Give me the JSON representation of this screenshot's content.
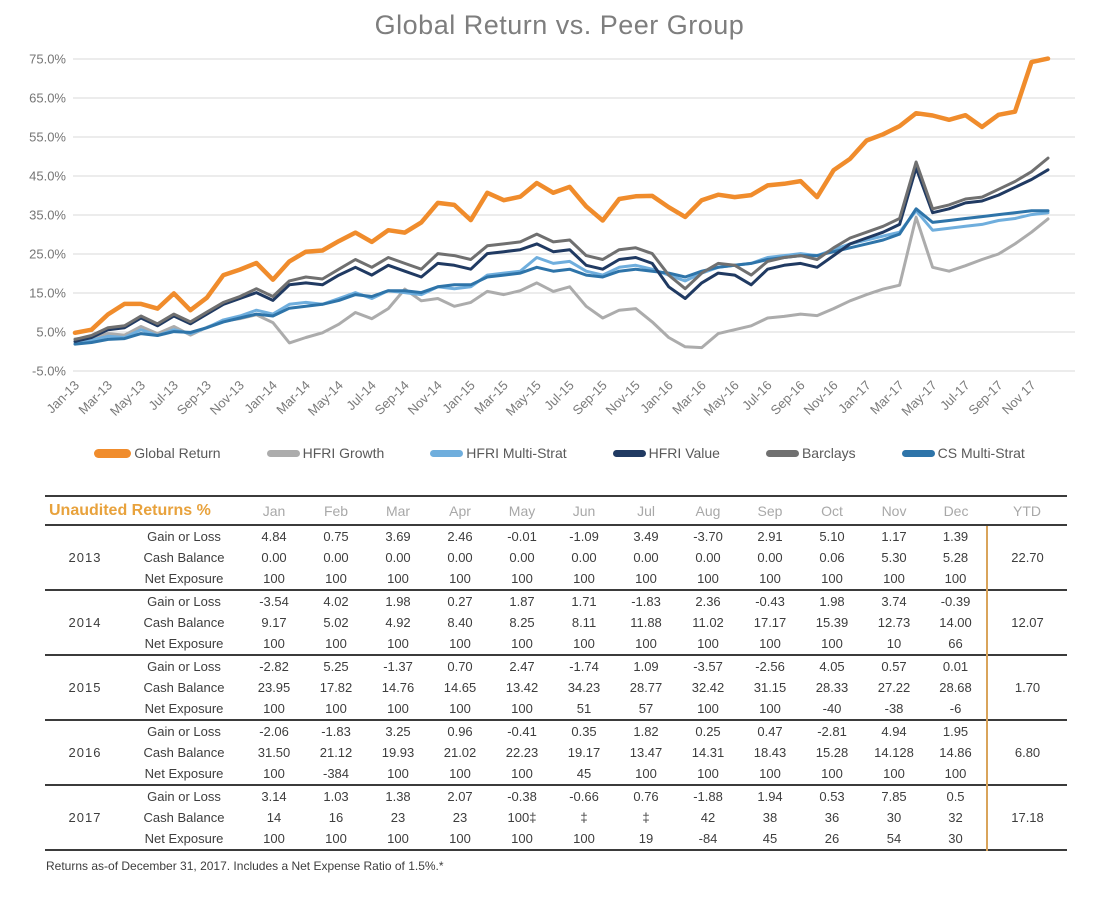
{
  "title": "Global Return vs. Peer Group",
  "footnote": "Returns as-of December 31, 2017. Includes a Net Expense Ratio of 1.5%.*",
  "colors": {
    "accent_orange": "#E8A23C",
    "navy": "#33506E",
    "grid_line": "#D9D9D9",
    "axis_text": "#757575",
    "table_rule": "#3B3B3B",
    "ytd_divider": "#D9A45B"
  },
  "chart_data": {
    "type": "line",
    "title": "Global Return vs. Peer Group",
    "xlabel": "",
    "ylabel": "",
    "ylim": [
      -5,
      75
    ],
    "y_ticks": [
      75,
      65,
      55,
      45,
      35,
      25,
      15,
      5,
      -5
    ],
    "y_tick_labels": [
      "75.0%",
      "65.0%",
      "55.0%",
      "45.0%",
      "35.0%",
      "25.0%",
      "15.0%",
      "5.0%",
      "-5.0%"
    ],
    "x_tick_labels": [
      "Jan-13",
      "Mar-13",
      "May-13",
      "Jul-13",
      "Sep-13",
      "Nov-13",
      "Jan-14",
      "Mar-14",
      "May-14",
      "Jul-14",
      "Sep-14",
      "Nov-14",
      "Jan-15",
      "Mar-15",
      "May-15",
      "Jul-15",
      "Sep-15",
      "Nov-15",
      "Jan-16",
      "Mar-16",
      "May-16",
      "Jul-16",
      "Sep-16",
      "Nov-16",
      "Jan-17",
      "Mar-17",
      "May-17",
      "Jul-17",
      "Sep-17",
      "Nov 17"
    ],
    "x_count": 60,
    "grid": true,
    "legend_position": "bottom",
    "draw_order": [
      1,
      2,
      5,
      3,
      4,
      0
    ],
    "series": [
      {
        "name": "Global Return",
        "color": "#F08C2C",
        "width": 4.5,
        "values": [
          4.8,
          5.6,
          9.5,
          12.2,
          12.2,
          11.0,
          14.9,
          10.6,
          13.8,
          19.6,
          21.0,
          22.7,
          18.4,
          23.1,
          25.6,
          25.9,
          28.3,
          30.5,
          28.1,
          31.1,
          30.5,
          33.1,
          38.1,
          37.6,
          33.7,
          40.7,
          38.8,
          39.7,
          43.2,
          40.7,
          42.2,
          37.2,
          33.6,
          39.1,
          39.8,
          39.9,
          37.0,
          34.5,
          38.8,
          40.2,
          39.6,
          40.1,
          42.6,
          43.0,
          43.7,
          39.6,
          46.5,
          49.4,
          54.1,
          55.7,
          57.8,
          61.1,
          60.5,
          59.4,
          60.6,
          57.6,
          60.7,
          61.5,
          74.2,
          75.1
        ]
      },
      {
        "name": "HFRI Growth",
        "color": "#ACACAC",
        "width": 3,
        "values": [
          3.2,
          3.6,
          4.6,
          4.2,
          6.4,
          4.6,
          6.4,
          4.2,
          6.2,
          7.8,
          8.4,
          9.4,
          7.4,
          2.2,
          3.6,
          4.8,
          7.0,
          10.0,
          8.4,
          11.0,
          16.0,
          13.0,
          13.6,
          11.6,
          12.6,
          15.4,
          14.6,
          15.6,
          17.6,
          15.4,
          16.6,
          11.6,
          8.6,
          10.6,
          11.0,
          7.6,
          3.6,
          1.2,
          1.0,
          4.6,
          5.6,
          6.6,
          8.6,
          9.0,
          9.6,
          9.2,
          11.0,
          13.0,
          14.6,
          16.0,
          17.0,
          34.4,
          21.6,
          20.6,
          22.0,
          23.6,
          25.0,
          27.6,
          30.6,
          34.0
        ]
      },
      {
        "name": "HFRI Multi-Strat",
        "color": "#6FAEDD",
        "width": 3,
        "values": [
          2.4,
          2.9,
          3.9,
          3.6,
          5.6,
          4.1,
          5.6,
          4.6,
          6.1,
          8.1,
          9.1,
          10.6,
          9.6,
          12.1,
          12.6,
          12.1,
          13.6,
          15.1,
          13.6,
          15.6,
          15.1,
          14.6,
          16.6,
          16.1,
          16.6,
          19.6,
          20.1,
          20.6,
          24.1,
          22.6,
          23.1,
          20.6,
          19.6,
          21.6,
          22.1,
          21.1,
          19.6,
          18.1,
          20.1,
          21.6,
          22.1,
          22.6,
          24.1,
          24.6,
          25.1,
          24.6,
          26.1,
          27.6,
          28.6,
          29.6,
          30.6,
          36.1,
          31.1,
          31.6,
          32.1,
          32.6,
          33.6,
          34.1,
          35.1,
          35.6
        ]
      },
      {
        "name": "HFRI Value",
        "color": "#203A62",
        "width": 3,
        "values": [
          2.6,
          3.6,
          5.6,
          6.1,
          8.6,
          6.6,
          9.1,
          7.1,
          9.6,
          12.1,
          13.6,
          15.1,
          13.1,
          17.1,
          17.6,
          17.1,
          19.6,
          21.6,
          19.6,
          22.1,
          20.6,
          19.1,
          22.6,
          22.1,
          21.1,
          25.1,
          25.6,
          26.1,
          27.6,
          25.6,
          26.1,
          22.1,
          21.1,
          23.6,
          24.1,
          22.6,
          16.6,
          13.6,
          17.6,
          20.1,
          19.6,
          17.1,
          21.1,
          22.1,
          22.6,
          21.6,
          24.6,
          27.6,
          29.1,
          30.6,
          32.6,
          47.1,
          35.6,
          36.6,
          38.1,
          38.6,
          40.1,
          42.1,
          44.1,
          46.6
        ]
      },
      {
        "name": "Barclays",
        "color": "#707070",
        "width": 3,
        "values": [
          3.1,
          4.1,
          6.1,
          6.6,
          9.1,
          7.1,
          9.6,
          7.6,
          10.1,
          12.6,
          14.1,
          16.1,
          14.1,
          18.1,
          19.1,
          18.6,
          21.1,
          23.6,
          21.6,
          24.1,
          22.6,
          21.1,
          25.1,
          24.6,
          23.6,
          27.1,
          27.6,
          28.1,
          30.1,
          28.1,
          28.6,
          24.6,
          23.6,
          26.1,
          26.6,
          25.1,
          19.6,
          16.1,
          20.1,
          22.6,
          22.1,
          19.6,
          23.1,
          24.1,
          24.6,
          23.6,
          26.6,
          29.1,
          30.6,
          32.1,
          34.1,
          48.6,
          36.6,
          37.6,
          39.1,
          39.6,
          41.6,
          43.6,
          46.1,
          49.6
        ]
      },
      {
        "name": "CS Multi-Strat",
        "color": "#2E74A9",
        "width": 3,
        "values": [
          1.9,
          2.3,
          3.1,
          3.3,
          4.6,
          4.1,
          5.1,
          4.9,
          6.1,
          7.6,
          8.6,
          9.6,
          9.1,
          11.1,
          11.6,
          12.1,
          13.1,
          14.6,
          14.1,
          15.6,
          15.6,
          15.1,
          16.6,
          17.1,
          17.1,
          19.1,
          19.6,
          20.1,
          21.6,
          20.6,
          21.1,
          19.6,
          19.1,
          20.6,
          21.1,
          20.6,
          20.1,
          19.1,
          20.6,
          21.6,
          22.1,
          22.6,
          23.6,
          24.1,
          24.6,
          24.6,
          25.6,
          26.6,
          27.6,
          28.6,
          30.1,
          36.6,
          33.1,
          33.6,
          34.1,
          34.6,
          35.1,
          35.6,
          36.1,
          36.1
        ]
      }
    ]
  },
  "table": {
    "heading": "Unaudited Returns %",
    "months": [
      "Jan",
      "Feb",
      "Mar",
      "Apr",
      "May",
      "Jun",
      "Jul",
      "Aug",
      "Sep",
      "Oct",
      "Nov",
      "Dec"
    ],
    "ytd_label": "YTD",
    "row_labels": [
      "Gain or Loss",
      "Cash Balance",
      "Net Exposure"
    ],
    "years": [
      {
        "year": "2013",
        "gain_or_loss": [
          "4.84",
          "0.75",
          "3.69",
          "2.46",
          "-0.01",
          "-1.09",
          "3.49",
          "-3.70",
          "2.91",
          "5.10",
          "1.17",
          "1.39"
        ],
        "cash_balance": [
          "0.00",
          "0.00",
          "0.00",
          "0.00",
          "0.00",
          "0.00",
          "0.00",
          "0.00",
          "0.00",
          "0.06",
          "5.30",
          "5.28"
        ],
        "net_exposure": [
          "100",
          "100",
          "100",
          "100",
          "100",
          "100",
          "100",
          "100",
          "100",
          "100",
          "100",
          "100"
        ],
        "ytd": "22.70"
      },
      {
        "year": "2014",
        "gain_or_loss": [
          "-3.54",
          "4.02",
          "1.98",
          "0.27",
          "1.87",
          "1.71",
          "-1.83",
          "2.36",
          "-0.43",
          "1.98",
          "3.74",
          "-0.39"
        ],
        "cash_balance": [
          "9.17",
          "5.02",
          "4.92",
          "8.40",
          "8.25",
          "8.11",
          "11.88",
          "11.02",
          "17.17",
          "15.39",
          "12.73",
          "14.00"
        ],
        "net_exposure": [
          "100",
          "100",
          "100",
          "100",
          "100",
          "100",
          "100",
          "100",
          "100",
          "100",
          "10",
          "66"
        ],
        "ytd": "12.07"
      },
      {
        "year": "2015",
        "gain_or_loss": [
          "-2.82",
          "5.25",
          "-1.37",
          "0.70",
          "2.47",
          "-1.74",
          "1.09",
          "-3.57",
          "-2.56",
          "4.05",
          "0.57",
          "0.01"
        ],
        "cash_balance": [
          "23.95",
          "17.82",
          "14.76",
          "14.65",
          "13.42",
          "34.23",
          "28.77",
          "32.42",
          "31.15",
          "28.33",
          "27.22",
          "28.68"
        ],
        "net_exposure": [
          "100",
          "100",
          "100",
          "100",
          "100",
          "51",
          "57",
          "100",
          "100",
          "-40",
          "-38",
          "-6"
        ],
        "ytd": "1.70"
      },
      {
        "year": "2016",
        "gain_or_loss": [
          "-2.06",
          "-1.83",
          "3.25",
          "0.96",
          "-0.41",
          "0.35",
          "1.82",
          "0.25",
          "0.47",
          "-2.81",
          "4.94",
          "1.95"
        ],
        "cash_balance": [
          "31.50",
          "21.12",
          "19.93",
          "21.02",
          "22.23",
          "19.17",
          "13.47",
          "14.31",
          "18.43",
          "15.28",
          "14.128",
          "14.86"
        ],
        "net_exposure": [
          "100",
          "-384",
          "100",
          "100",
          "100",
          "45",
          "100",
          "100",
          "100",
          "100",
          "100",
          "100"
        ],
        "ytd": "6.80"
      },
      {
        "year": "2017",
        "gain_or_loss": [
          "3.14",
          "1.03",
          "1.38",
          "2.07",
          "-0.38",
          "-0.66",
          "0.76",
          "-1.88",
          "1.94",
          "0.53",
          "7.85",
          "0.5"
        ],
        "cash_balance": [
          "14",
          "16",
          "23",
          "23",
          "100‡",
          "‡",
          "‡",
          "42",
          "38",
          "36",
          "30",
          "32"
        ],
        "net_exposure": [
          "100",
          "100",
          "100",
          "100",
          "100",
          "100",
          "19",
          "-84",
          "45",
          "26",
          "54",
          "30"
        ],
        "ytd": "17.18"
      }
    ]
  }
}
